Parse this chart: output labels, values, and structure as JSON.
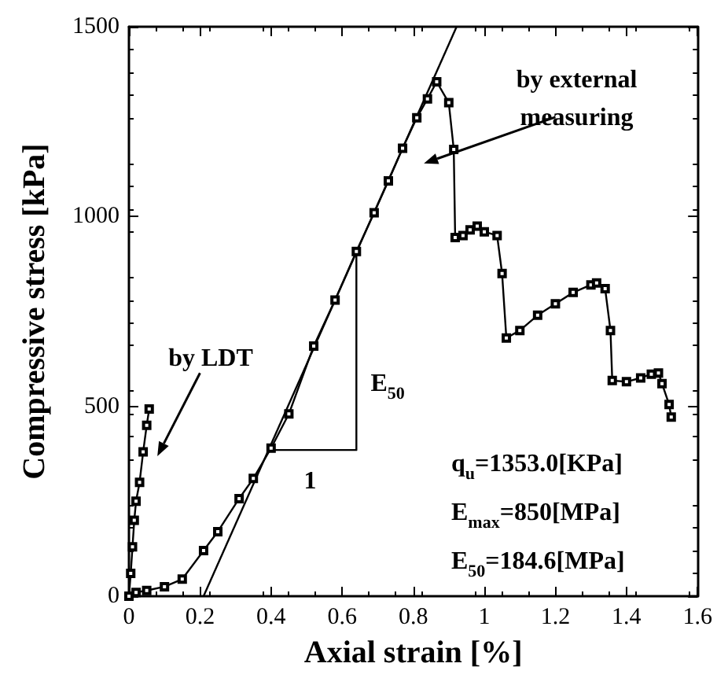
{
  "chart_data": {
    "type": "line",
    "xlabel": "Axial strain [%]",
    "ylabel": "Compressive stress [kPa]",
    "xlim": [
      0,
      1.6
    ],
    "xticks": [
      0,
      0.2,
      0.4,
      0.6,
      0.8,
      1,
      1.2,
      1.4,
      1.6
    ],
    "ylim": [
      0,
      1500
    ],
    "yticks": [
      0,
      500,
      1000,
      1500
    ],
    "grid": false,
    "marker": "square",
    "series": [
      {
        "color": "#000000",
        "x": [
          0,
          0.02,
          0.05,
          0.1,
          0.15,
          0.21,
          0.25,
          0.31,
          0.35,
          0.4,
          0.45,
          0.52,
          0.58,
          0.64,
          0.69,
          0.73,
          0.77,
          0.81,
          0.84,
          0.866,
          0.9,
          0.914,
          0.918,
          0.94,
          0.96,
          0.98,
          1.0,
          1.036,
          1.05,
          1.062,
          1.1,
          1.15,
          1.2,
          1.25,
          1.3,
          1.316,
          1.34,
          1.355,
          1.36,
          1.4,
          1.44,
          1.47,
          1.49,
          1.5,
          1.52,
          1.526
        ],
        "values": [
          0,
          10,
          15,
          25,
          45,
          120,
          170,
          257,
          310,
          390,
          480,
          659,
          780,
          908,
          1010,
          1094,
          1180,
          1260,
          1310,
          1355,
          1300,
          1177,
          945,
          950,
          965,
          975,
          960,
          950,
          850,
          680,
          700,
          740,
          770,
          800,
          820,
          825,
          810,
          700,
          568,
          565,
          575,
          585,
          588,
          560,
          505,
          472
        ]
      },
      {
        "color": "#000000",
        "x": [
          0,
          0.005,
          0.01,
          0.015,
          0.02,
          0.03,
          0.04,
          0.05,
          0.057
        ],
        "values": [
          0,
          60,
          130,
          200,
          250,
          300,
          380,
          450,
          493
        ]
      },
      {
        "color": "#000000",
        "marker": "none",
        "x": [
          0.21,
          0.922
        ],
        "values": [
          0,
          1500
        ]
      },
      {
        "color": "#000000",
        "marker": "none",
        "x": [
          0.41,
          0.64,
          0.64
        ],
        "values": [
          385,
          385,
          908
        ]
      }
    ],
    "annotations": [
      "by external measuring",
      "by LDT",
      "1",
      "E$_{50}$",
      "q$_{u}$=1353.0[KPa]",
      "E$_{max}$=850[MPa]",
      "E$_{50}$=184.6[MPa]"
    ]
  }
}
